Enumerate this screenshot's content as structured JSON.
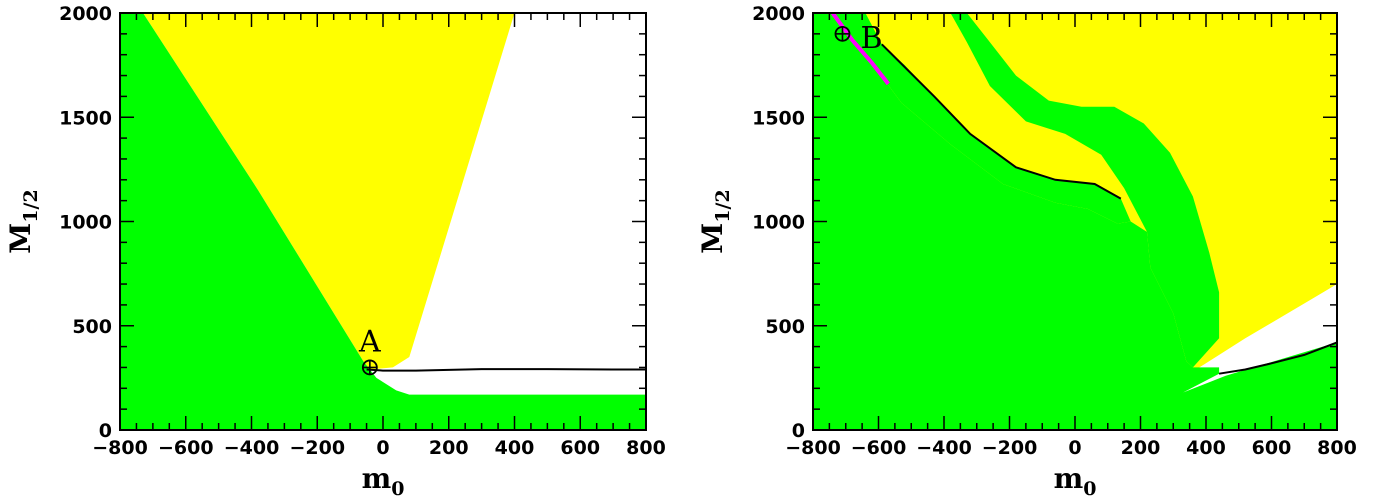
{
  "colors": {
    "green": "#00ff00",
    "yellow": "#ffff00",
    "magenta": "#ff00ff",
    "line": "#000000"
  },
  "chart_data": [
    {
      "type": "area",
      "panel": "left",
      "xlabel_main": "m",
      "xlabel_sub": "0",
      "ylabel_main": "M",
      "ylabel_sub": "1/2",
      "xlim": [
        -800,
        800
      ],
      "ylim": [
        0,
        2000
      ],
      "x_ticks": [
        -800,
        -600,
        -400,
        -200,
        0,
        200,
        400,
        600,
        800
      ],
      "y_ticks": [
        0,
        500,
        1000,
        1500,
        2000
      ],
      "x_tick_labels": [
        "−800",
        "−600",
        "−400",
        "−200",
        "0",
        "200",
        "400",
        "600",
        "800"
      ],
      "y_tick_labels": [
        "0",
        "500",
        "1000",
        "1500",
        "2000"
      ],
      "regions": {
        "green": [
          [
            -800,
            0
          ],
          [
            -800,
            2000
          ],
          [
            -730,
            2000
          ],
          [
            -380,
            1150
          ],
          [
            -60,
            330
          ],
          [
            -20,
            250
          ],
          [
            40,
            190
          ],
          [
            80,
            170
          ],
          [
            800,
            170
          ],
          [
            800,
            0
          ]
        ],
        "yellow": [
          [
            -730,
            2000
          ],
          [
            400,
            2000
          ],
          [
            80,
            350
          ],
          [
            30,
            300
          ],
          [
            -40,
            290
          ],
          [
            -60,
            330
          ],
          [
            -380,
            1150
          ]
        ]
      },
      "contours": [
        {
          "name": "boundary",
          "points": [
            [
              -50,
              290
            ],
            [
              0,
              285
            ],
            [
              100,
              285
            ],
            [
              300,
              292
            ],
            [
              500,
              292
            ],
            [
              700,
              290
            ],
            [
              800,
              290
            ]
          ]
        }
      ],
      "points": [
        {
          "label": "A",
          "x": -40,
          "y": 300
        }
      ]
    },
    {
      "type": "area",
      "panel": "right",
      "xlabel_main": "m",
      "xlabel_sub": "0",
      "ylabel_main": "M",
      "ylabel_sub": "1/2",
      "xlim": [
        -800,
        800
      ],
      "ylim": [
        0,
        2000
      ],
      "x_ticks": [
        -800,
        -600,
        -400,
        -200,
        0,
        200,
        400,
        600,
        800
      ],
      "y_ticks": [
        0,
        500,
        1000,
        1500,
        2000
      ],
      "x_tick_labels": [
        "−800",
        "−600",
        "−400",
        "−200",
        "0",
        "200",
        "400",
        "600",
        "800"
      ],
      "y_tick_labels": [
        "0",
        "500",
        "1000",
        "1500",
        "2000"
      ],
      "regions": {
        "yellow": [
          [
            -800,
            2000
          ],
          [
            800,
            2000
          ],
          [
            800,
            700
          ],
          [
            380,
            300
          ],
          [
            320,
            180
          ],
          [
            -800,
            0
          ]
        ],
        "white": [
          [
            800,
            700
          ],
          [
            800,
            420
          ],
          [
            460,
            260
          ],
          [
            330,
            180
          ],
          [
            380,
            300
          ],
          [
            520,
            440
          ]
        ],
        "green_band": [
          [
            -760,
            2000
          ],
          [
            -640,
            2000
          ],
          [
            -590,
            1850
          ],
          [
            -520,
            1750
          ],
          [
            -430,
            1600
          ],
          [
            -320,
            1420
          ],
          [
            -180,
            1260
          ],
          [
            -60,
            1200
          ],
          [
            60,
            1180
          ],
          [
            140,
            1110
          ],
          [
            170,
            1000
          ],
          [
            130,
            990
          ],
          [
            40,
            1060
          ],
          [
            -60,
            1090
          ],
          [
            -220,
            1180
          ],
          [
            -380,
            1370
          ],
          [
            -530,
            1570
          ],
          [
            -640,
            1800
          ],
          [
            -720,
            1960
          ]
        ],
        "green_arc": [
          [
            -380,
            2000
          ],
          [
            -330,
            2000
          ],
          [
            -270,
            1880
          ],
          [
            -180,
            1700
          ],
          [
            -80,
            1580
          ],
          [
            20,
            1550
          ],
          [
            120,
            1550
          ],
          [
            210,
            1470
          ],
          [
            290,
            1330
          ],
          [
            360,
            1120
          ],
          [
            410,
            850
          ],
          [
            440,
            660
          ],
          [
            440,
            440
          ],
          [
            360,
            300
          ],
          [
            340,
            330
          ],
          [
            300,
            560
          ],
          [
            230,
            780
          ],
          [
            220,
            950
          ],
          [
            150,
            1160
          ],
          [
            80,
            1320
          ],
          [
            -30,
            1420
          ],
          [
            -150,
            1480
          ],
          [
            -260,
            1650
          ],
          [
            -330,
            1860
          ]
        ],
        "green_main": [
          [
            -800,
            0
          ],
          [
            -800,
            2000
          ],
          [
            -760,
            2000
          ],
          [
            -720,
            1960
          ],
          [
            -640,
            1800
          ],
          [
            -530,
            1570
          ],
          [
            -380,
            1370
          ],
          [
            -220,
            1180
          ],
          [
            -60,
            1090
          ],
          [
            40,
            1060
          ],
          [
            130,
            990
          ],
          [
            170,
            1000
          ],
          [
            220,
            950
          ],
          [
            230,
            780
          ],
          [
            300,
            560
          ],
          [
            340,
            330
          ],
          [
            360,
            300
          ],
          [
            440,
            300
          ],
          [
            440,
            270
          ],
          [
            330,
            180
          ],
          [
            460,
            260
          ],
          [
            800,
            420
          ],
          [
            800,
            0
          ]
        ]
      },
      "contours": [
        {
          "name": "boundary-lower",
          "points": [
            [
              440,
              270
            ],
            [
              520,
              290
            ],
            [
              600,
              320
            ],
            [
              700,
              360
            ],
            [
              800,
              420
            ]
          ]
        },
        {
          "name": "boundary-band",
          "points": [
            [
              -590,
              1850
            ],
            [
              -430,
              1600
            ],
            [
              -320,
              1420
            ],
            [
              -180,
              1260
            ],
            [
              -60,
              1200
            ],
            [
              60,
              1180
            ],
            [
              140,
              1110
            ]
          ]
        }
      ],
      "magenta_line": [
        [
          -740,
          2000
        ],
        [
          -680,
          1870
        ],
        [
          -620,
          1760
        ],
        [
          -570,
          1660
        ]
      ],
      "points": [
        {
          "label": "B",
          "x": -710,
          "y": 1900
        }
      ]
    }
  ]
}
